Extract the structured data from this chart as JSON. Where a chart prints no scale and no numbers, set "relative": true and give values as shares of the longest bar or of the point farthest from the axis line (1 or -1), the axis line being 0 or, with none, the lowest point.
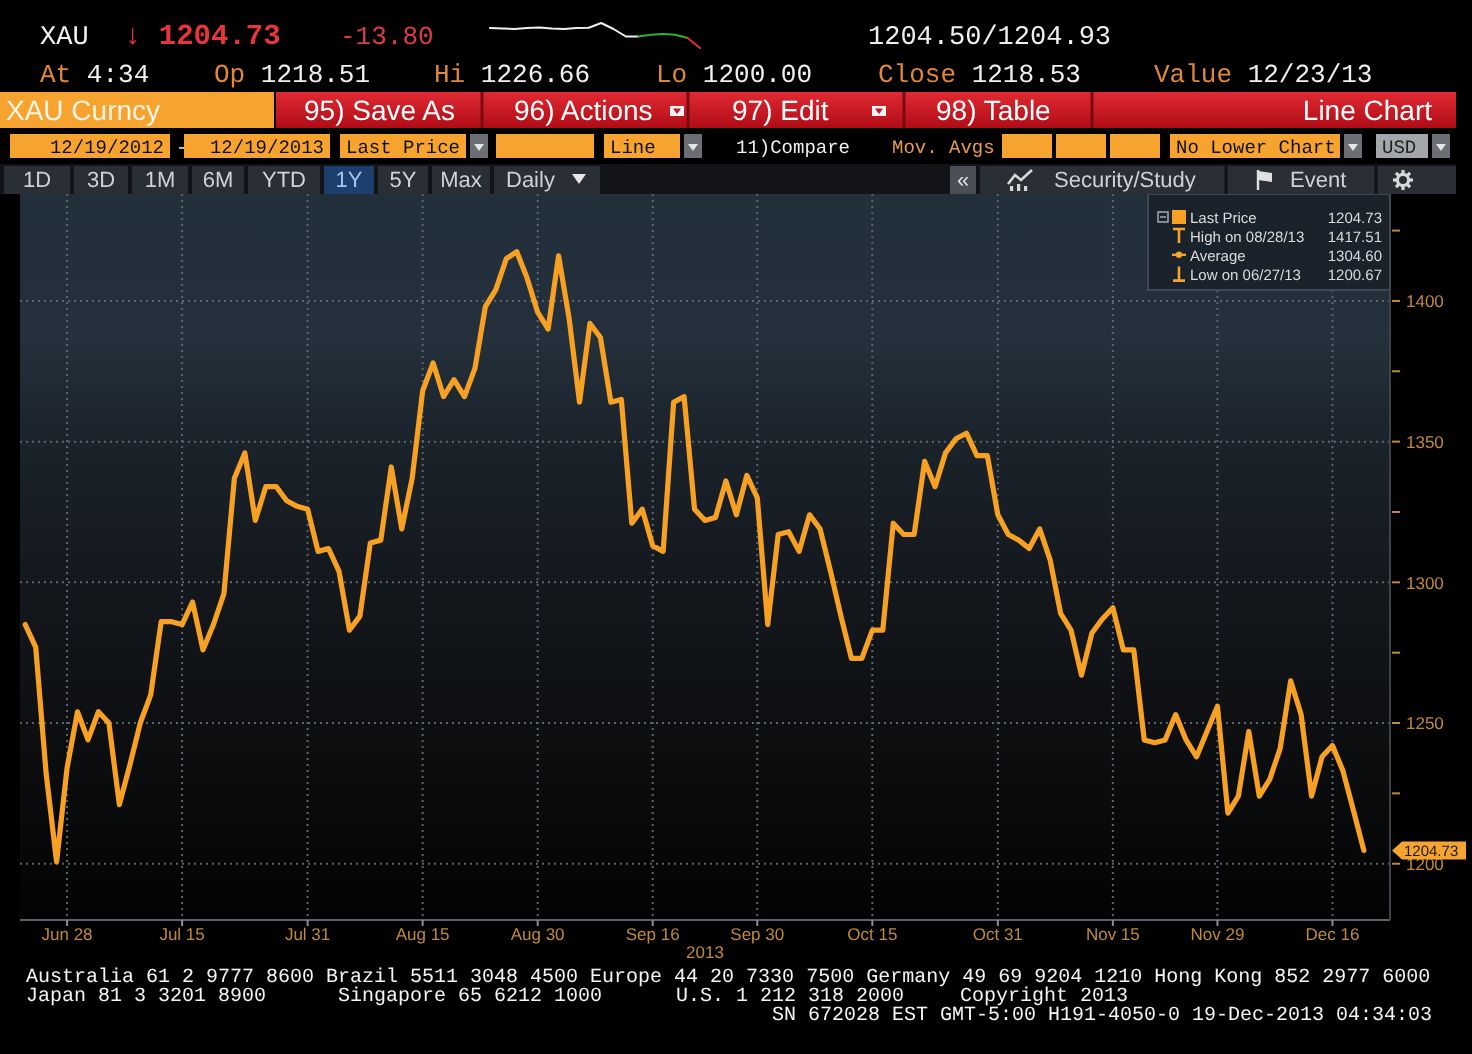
{
  "chart_data": [
    {
      "type": "line",
      "title": "XAU",
      "xlabel": "2013",
      "categories": [
        null,
        null,
        null,
        null,
        "Jun 28",
        null,
        null,
        null,
        null,
        null,
        null,
        null,
        null,
        null,
        null,
        "Jul 15",
        null,
        null,
        null,
        null,
        null,
        null,
        null,
        null,
        null,
        null,
        null,
        "Jul 31",
        null,
        null,
        null,
        null,
        null,
        null,
        null,
        null,
        null,
        null,
        "Aug 15",
        null,
        null,
        null,
        null,
        null,
        null,
        null,
        null,
        null,
        null,
        "Aug 30",
        null,
        null,
        null,
        null,
        null,
        null,
        null,
        null,
        null,
        null,
        "Sep 16",
        null,
        null,
        null,
        null,
        null,
        null,
        null,
        null,
        null,
        "Sep 30",
        null,
        null,
        null,
        null,
        null,
        null,
        null,
        null,
        null,
        null,
        "Oct 15",
        null,
        null,
        null,
        null,
        null,
        null,
        null,
        null,
        null,
        null,
        null,
        "Oct 31",
        null,
        null,
        null,
        null,
        null,
        null,
        null,
        null,
        null,
        null,
        "Nov 15",
        null,
        null,
        null,
        null,
        null,
        null,
        null,
        null,
        null,
        "Nov 29",
        null,
        null,
        null,
        null,
        null,
        null,
        null,
        null,
        null,
        null,
        "Dec 16",
        null,
        null,
        null
      ],
      "series": [
        {
          "name": "Last Price",
          "color": "#f7a124",
          "values": [
            1285,
            1277,
            1232,
            1200.67,
            1234,
            1254,
            1244,
            1254,
            1250,
            1221,
            1235,
            1250,
            1260,
            1286,
            1286,
            1285,
            1293,
            1276,
            1285,
            1296,
            1337,
            1346,
            1322,
            1334,
            1334,
            1329,
            1327,
            1326,
            1311,
            1312,
            1304,
            1283,
            1288,
            1314,
            1315,
            1341,
            1319,
            1337,
            1368,
            1378,
            1366,
            1372,
            1366,
            1376,
            1398,
            1404,
            1415,
            1417.51,
            1408,
            1396,
            1390,
            1416,
            1394,
            1364,
            1392,
            1387,
            1364,
            1365,
            1321,
            1326,
            1313,
            1311,
            1364,
            1366,
            1326,
            1322,
            1323,
            1336,
            1324,
            1338,
            1330,
            1285,
            1317,
            1318,
            1311,
            1324,
            1319,
            1304,
            1288,
            1273,
            1273,
            1283,
            1283,
            1321,
            1317,
            1317,
            1343,
            1334,
            1346,
            1351,
            1353,
            1345,
            1345,
            1324,
            1317,
            1315,
            1312,
            1319,
            1308,
            1289,
            1283,
            1267,
            1282,
            1287,
            1291,
            1276,
            1276,
            1244,
            1243,
            1244,
            1253,
            1244,
            1238,
            1247,
            1256,
            1218,
            1224,
            1247,
            1224,
            1230,
            1241,
            1265,
            1253,
            1224,
            1238,
            1242,
            1233,
            1219,
            1204.73
          ]
        }
      ],
      "ylim": [
        1180,
        1438
      ],
      "yticks": [
        1200,
        {
          "value": 1225,
          "label": null
        },
        1250,
        {
          "value": 1275,
          "label": null
        },
        1300,
        {
          "value": 1325,
          "label": null
        },
        1350,
        {
          "value": 1375,
          "label": null
        },
        1400,
        {
          "value": 1425,
          "label": null
        }
      ],
      "grid": true,
      "legend": "top right",
      "annotations": [
        "↓ 1204.73",
        "-13.80",
        "1204.50/1204.93",
        "At 4:34",
        "Op 1218.51",
        "Hi 1226.66",
        "Lo 1200.00",
        "Close 1218.53",
        "Value 12/23/13",
        "XAU Curncy",
        "95) Save As",
        "96) Actions",
        "97) Edit",
        "98) Table",
        "Line Chart",
        "12/19/2012",
        "-",
        "12/19/2013",
        "Last Price",
        "Line",
        "11)Compare",
        "Mov. Avgs",
        "No Lower Chart",
        "USD",
        "1D",
        "3D",
        "1M",
        "6M",
        "YTD",
        "1Y",
        "5Y",
        "Max",
        "Daily",
        "«",
        "Security/Study",
        "Event",
        "1204.73",
        "High on 08/28/13 1417.51",
        "Average 1304.60",
        "Low on 06/27/13 1200.67",
        "Australia 61 2 9777 8600 Brazil 5511 3048 4500 Europe 44 20 7330 7500 Germany 49 69 9204 1210 Hong Kong 852 2977 6000",
        "Japan 81 3 3201 8900",
        "Singapore 65 6212 1000",
        "U.S. 1 212 318 2000",
        "Copyright 2013",
        "SN 672028 EST GMT-5:00 H191-4050-0 19-Dec-2013 04:34:03",
        "1204.73"
      ]
    },
    {
      "type": "line",
      "relative": true,
      "categories": [
        null,
        null,
        null,
        null,
        null,
        null,
        null,
        null,
        null,
        null,
        null,
        null,
        null,
        null,
        null,
        null,
        null,
        null
      ],
      "series": [
        {
          "color": "#f0f0f0",
          "values": [
            0.8,
            0.78,
            0.76,
            0.8,
            0.82,
            0.78,
            0.76,
            0.8,
            0.81,
            1,
            0.76,
            0.46,
            0.46,
            null,
            null,
            null,
            null,
            null
          ]
        },
        {
          "color": "#2fae3a",
          "values": [
            null,
            null,
            null,
            null,
            null,
            null,
            null,
            null,
            null,
            null,
            null,
            null,
            0.46,
            0.53,
            0.56,
            0.53,
            0.4,
            null
          ]
        },
        {
          "color": "#e03030",
          "values": [
            null,
            null,
            null,
            null,
            null,
            null,
            null,
            null,
            null,
            null,
            null,
            null,
            null,
            null,
            null,
            null,
            0.4,
            0
          ]
        }
      ]
    }
  ]
}
